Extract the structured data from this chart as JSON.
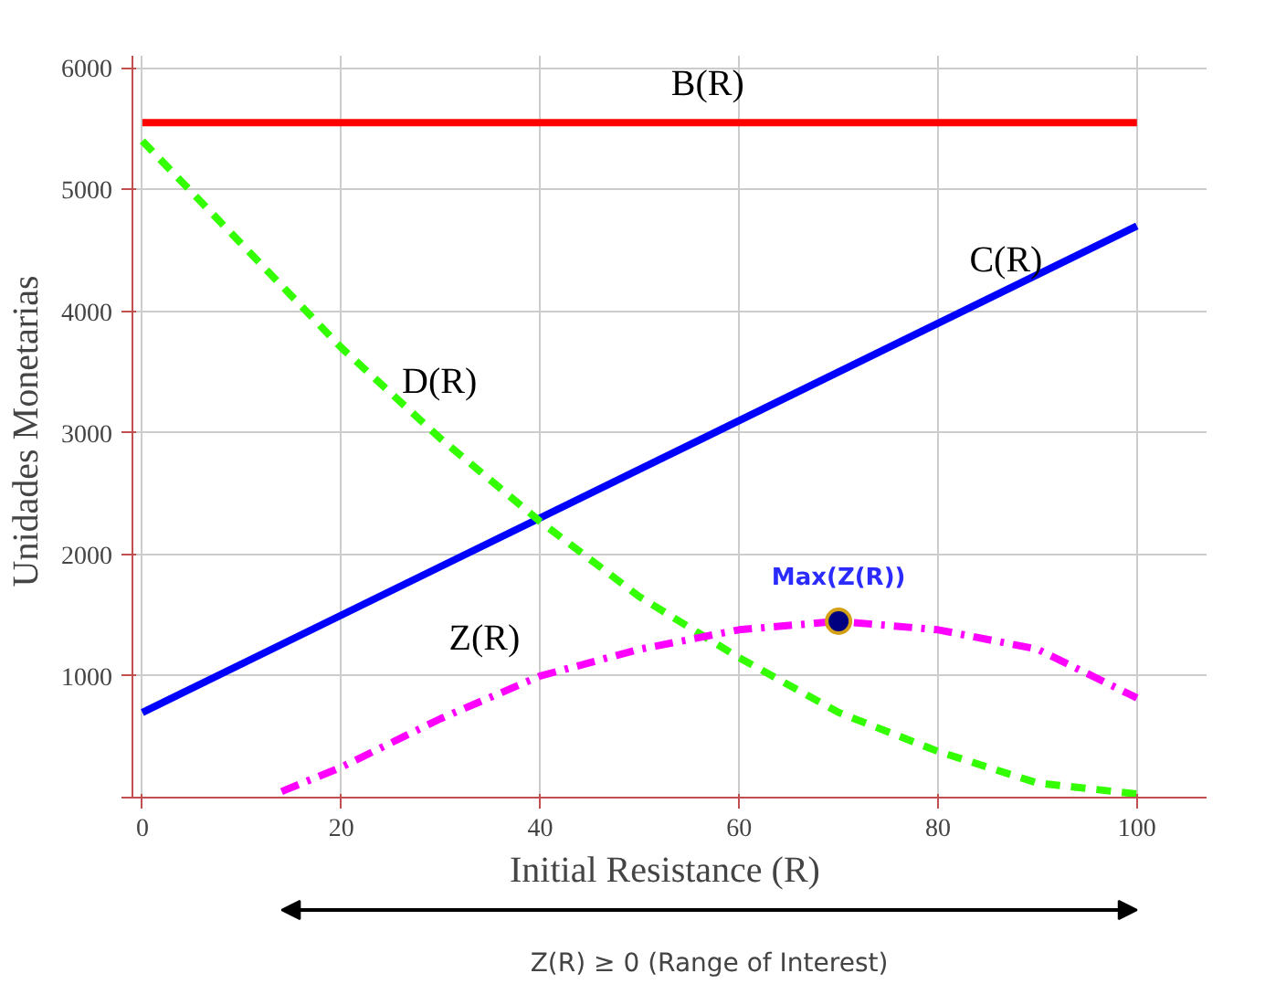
{
  "chart_data": {
    "type": "line",
    "xlabel": "Initial  Resistance (R)",
    "ylabel": "Unidades  Monetarias",
    "xlim": [
      -1,
      107
    ],
    "ylim": [
      0,
      6100
    ],
    "xticks": [
      0,
      20,
      40,
      60,
      80,
      100
    ],
    "yticks": [
      {
        "value": 0,
        "label": null
      },
      1000,
      2000,
      3000,
      4000,
      5000,
      6000
    ],
    "grid": true,
    "series": [
      {
        "name": "B(R)",
        "color": "#ff0000",
        "line_style": "solid",
        "x": [
          0,
          100
        ],
        "values": [
          5550,
          5550
        ]
      },
      {
        "name": "C(R)",
        "color": "#0000ff",
        "line_style": "solid",
        "x": [
          0,
          100
        ],
        "values": [
          700,
          4700
        ]
      },
      {
        "name": "D(R)",
        "color": "#33ff00",
        "line_style": "dashed",
        "x": [
          0,
          10,
          20,
          30,
          40,
          50,
          60,
          70,
          80,
          90,
          100
        ],
        "values": [
          5400,
          4550,
          3700,
          2950,
          2270,
          1650,
          1150,
          700,
          380,
          120,
          30
        ]
      },
      {
        "name": "Z(R)",
        "color": "#ff00ff",
        "line_style": "dashdot",
        "x": [
          14,
          20,
          30,
          40,
          50,
          60,
          70,
          80,
          90,
          100
        ],
        "values": [
          50,
          250,
          650,
          1000,
          1220,
          1380,
          1450,
          1380,
          1220,
          820
        ]
      },
      {
        "type": "scatter",
        "color": "#000080",
        "marker": "circle",
        "x": [
          70
        ],
        "values": [
          1450
        ]
      }
    ],
    "annotations": [
      {
        "text": "Max(Z(R))",
        "x": 70,
        "y": 1450
      },
      "Z(R) ≥ 0 (Range of Interest)"
    ]
  }
}
